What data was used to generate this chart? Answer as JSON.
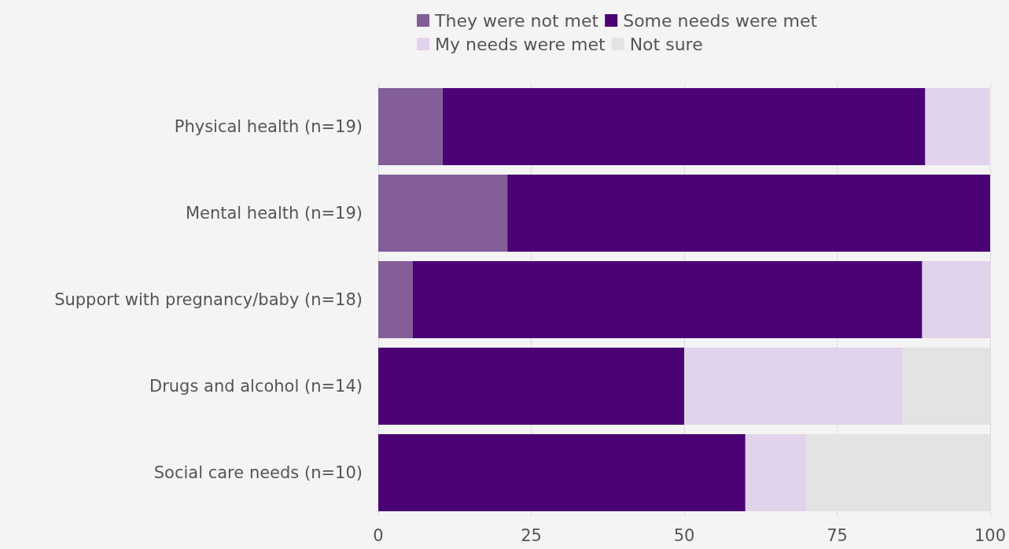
{
  "chart_data": {
    "type": "bar",
    "orientation": "horizontal",
    "stacked": true,
    "categories": [
      "Physical health (n=19)",
      "Mental health (n=19)",
      "Support with pregnancy/baby (n=18)",
      "Drugs and alcohol (n=14)",
      "Social care needs (n=10)"
    ],
    "series": [
      {
        "name": "They were not met",
        "color": "#835e99",
        "values": [
          10.5,
          21.1,
          5.6,
          0,
          0
        ]
      },
      {
        "name": "Some needs were met",
        "color": "#4b0275",
        "values": [
          78.9,
          78.9,
          83.3,
          50,
          60
        ]
      },
      {
        "name": "My needs were met",
        "color": "#e2d3ec",
        "values": [
          10.5,
          0,
          11.1,
          35.7,
          10
        ]
      },
      {
        "name": "Not sure",
        "color": "#e3e3e3",
        "values": [
          0,
          0,
          0,
          14.3,
          30
        ]
      }
    ],
    "xlim": [
      0,
      100
    ],
    "xticks": [
      0,
      25,
      50,
      75,
      100
    ],
    "grid": "x",
    "legend": "top"
  }
}
